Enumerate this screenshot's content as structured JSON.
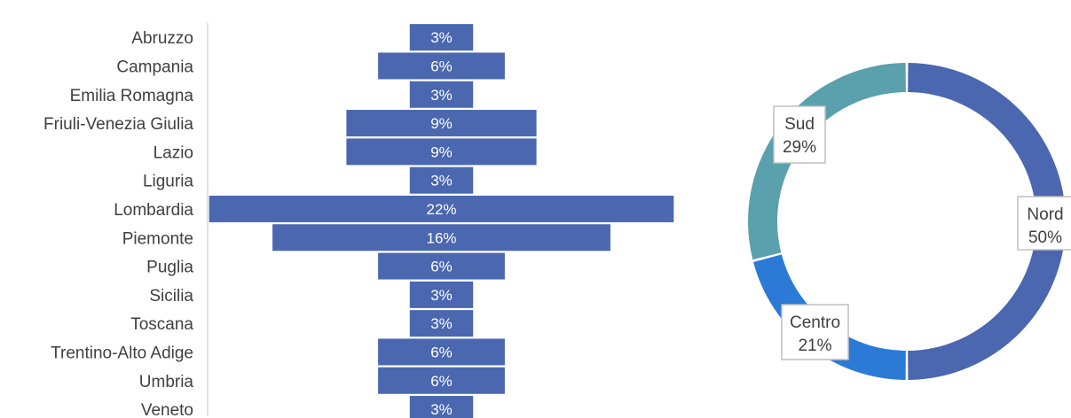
{
  "chart_data": [
    {
      "type": "bar",
      "orientation": "horizontal",
      "style": "centered",
      "categories": [
        "Abruzzo",
        "Campania",
        "Emilia Romagna",
        "Friuli-Venezia Giulia",
        "Lazio",
        "Liguria",
        "Lombardia",
        "Piemonte",
        "Puglia",
        "Sicilia",
        "Toscana",
        "Trentino-Alto Adige",
        "Umbria",
        "Veneto"
      ],
      "values": [
        3,
        6,
        3,
        9,
        9,
        3,
        22,
        16,
        6,
        3,
        3,
        6,
        6,
        3
      ],
      "data_labels": [
        "3%",
        "6%",
        "3%",
        "9%",
        "9%",
        "3%",
        "22%",
        "16%",
        "6%",
        "3%",
        "3%",
        "6%",
        "6%",
        "3%"
      ],
      "colors": {
        "bar": "#4a67b0",
        "label": "#ffffff",
        "axis": "#d9d9d9",
        "category_text": "#404040"
      },
      "title": "",
      "xlabel": "",
      "ylabel": "",
      "grid": false,
      "legend": "none"
    },
    {
      "type": "pie",
      "style": "donut",
      "slices": [
        {
          "label": "Nord",
          "value": 50,
          "text": "50%",
          "color": "#4a67b0"
        },
        {
          "label": "Centro",
          "value": 21,
          "text": "21%",
          "color": "#2b7bd6"
        },
        {
          "label": "Sud",
          "value": 29,
          "text": "29%",
          "color": "#5aa0ad"
        }
      ],
      "start_angle": "12 o'clock",
      "direction": "clockwise",
      "title": "",
      "legend": "none"
    }
  ]
}
